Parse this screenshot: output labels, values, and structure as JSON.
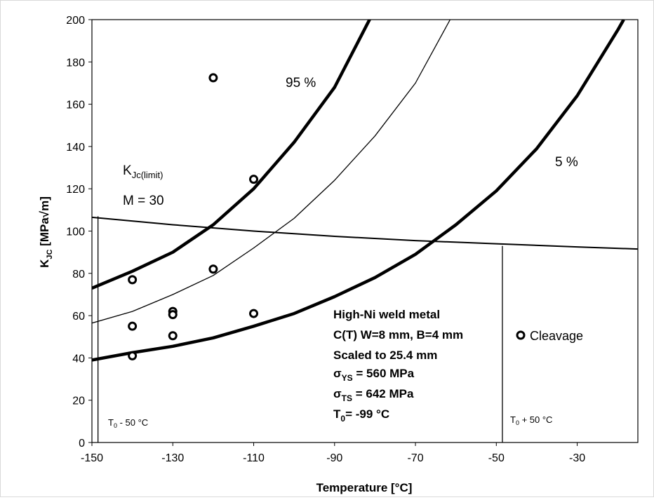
{
  "chart_data": {
    "type": "scatter",
    "title": "",
    "xlabel": "Temperature [°C]",
    "ylabel": {
      "main": "K",
      "sub": "JC",
      "rest": " [MPa√m]"
    },
    "xlim": [
      -150,
      -15
    ],
    "ylim": [
      0,
      200
    ],
    "x_ticks": [
      -150,
      -130,
      -110,
      -90,
      -70,
      -50,
      -30
    ],
    "x_tick_labels": [
      "-150",
      "-130",
      "-110",
      "-90",
      "-70",
      "-50",
      "-30"
    ],
    "y_ticks": [
      0,
      20,
      40,
      60,
      80,
      100,
      120,
      140,
      160,
      180,
      200
    ],
    "y_tick_labels": [
      "0",
      "20",
      "40",
      "60",
      "80",
      "100",
      "120",
      "140",
      "160",
      "180",
      "200"
    ],
    "grid": false,
    "series": [
      {
        "name": "Cleavage",
        "marker": "open-circle",
        "points": [
          [
            -140,
            77
          ],
          [
            -140,
            55
          ],
          [
            -140,
            41
          ],
          [
            -130,
            62
          ],
          [
            -130,
            60.5
          ],
          [
            -130,
            50.5
          ],
          [
            -120,
            172.5
          ],
          [
            -120,
            82
          ],
          [
            -110,
            124.5
          ],
          [
            -110,
            61
          ]
        ]
      }
    ],
    "curves": [
      {
        "label": "95 %",
        "style": "thick",
        "points": [
          [
            -150,
            73
          ],
          [
            -140,
            81
          ],
          [
            -130,
            90
          ],
          [
            -120,
            103
          ],
          [
            -110,
            120
          ],
          [
            -100,
            142
          ],
          [
            -90,
            168
          ],
          [
            -80,
            205
          ]
        ]
      },
      {
        "label": "",
        "style": "thin",
        "points": [
          [
            -150,
            56.5
          ],
          [
            -140,
            62
          ],
          [
            -130,
            70
          ],
          [
            -120,
            79
          ],
          [
            -110,
            92
          ],
          [
            -100,
            106
          ],
          [
            -90,
            124
          ],
          [
            -80,
            145
          ],
          [
            -70,
            170
          ],
          [
            -60,
            205
          ]
        ]
      },
      {
        "label": "5 %",
        "style": "thick",
        "points": [
          [
            -150,
            39
          ],
          [
            -140,
            42.5
          ],
          [
            -130,
            45.5
          ],
          [
            -120,
            49.5
          ],
          [
            -110,
            55
          ],
          [
            -100,
            61
          ],
          [
            -90,
            69
          ],
          [
            -80,
            78
          ],
          [
            -70,
            89
          ],
          [
            -60,
            103
          ],
          [
            -50,
            119
          ],
          [
            -40,
            139
          ],
          [
            -30,
            164
          ],
          [
            -20,
            195
          ],
          [
            -18.5,
            200
          ]
        ]
      },
      {
        "label": "K_Jc(limit)",
        "style": "medium",
        "points": [
          [
            -150,
            106.5
          ],
          [
            -130,
            103
          ],
          [
            -110,
            100
          ],
          [
            -90,
            97.5
          ],
          [
            -70,
            95.5
          ],
          [
            -50,
            94
          ],
          [
            -30,
            92.5
          ],
          [
            -15,
            91.5
          ]
        ]
      }
    ],
    "vertical_lines": [
      {
        "x": -148.5,
        "label": "T0 - 50 °C",
        "y_to": 107
      },
      {
        "x": -48.5,
        "label": "T0 + 50 °C",
        "y_to": 93
      }
    ],
    "annotations": {
      "p95": "95 %",
      "p5": "5 %",
      "klimit_main": "K",
      "klimit_sub": "Jc(limit)",
      "m_value": "M = 30",
      "t0_minus_main": "T",
      "t0_minus_sub": "0",
      "t0_minus_rest": " - 50 °C",
      "t0_plus_main": "T",
      "t0_plus_sub": "0",
      "t0_plus_rest": " + 50 °C"
    },
    "info_box": {
      "line1": "High-Ni weld metal",
      "line2": "C(T) W=8 mm, B=4 mm",
      "line3": "Scaled to 25.4 mm",
      "line4_main": "σ",
      "line4_sub": "YS",
      "line4_rest": " = 560 MPa",
      "line5_main": "σ",
      "line5_sub": "TS",
      "line5_rest": " = 642 MPa",
      "line6_main": "T",
      "line6_sub": "0",
      "line6_rest": "= -99 °C"
    },
    "legend": {
      "label": "Cleavage",
      "position": "right"
    }
  }
}
